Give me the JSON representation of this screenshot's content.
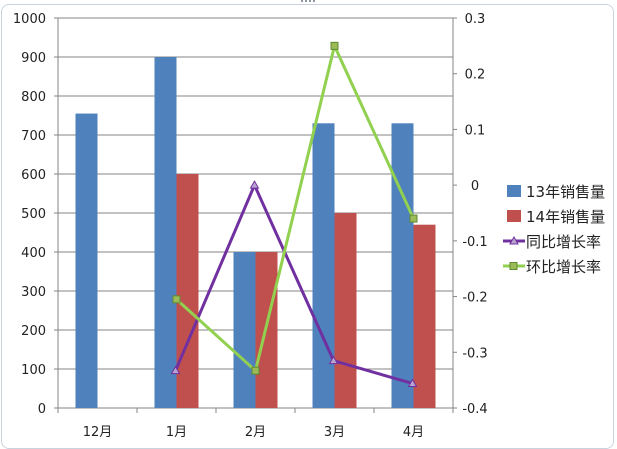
{
  "chart_data": {
    "type": "bar+line",
    "categories": [
      "12月",
      "1月",
      "2月",
      "3月",
      "4月"
    ],
    "series": [
      {
        "name": "13年销售量",
        "kind": "bar",
        "axis": "left",
        "color": "#4f81bd",
        "values": [
          755,
          900,
          400,
          730,
          730
        ]
      },
      {
        "name": "14年销售量",
        "kind": "bar",
        "axis": "left",
        "color": "#c0504d",
        "values": [
          null,
          600,
          400,
          500,
          470
        ]
      },
      {
        "name": "同比增长率",
        "kind": "line",
        "axis": "right",
        "color": "#7030a0",
        "marker": "triangle",
        "values": [
          null,
          -0.333,
          0,
          -0.315,
          -0.356
        ]
      },
      {
        "name": "环比增长率",
        "kind": "line",
        "axis": "right",
        "color": "#92d050",
        "marker": "square",
        "values": [
          null,
          -0.205,
          -0.333,
          0.25,
          -0.06
        ]
      }
    ],
    "yleft": {
      "lim": [
        0,
        1000
      ],
      "ticks": [
        "0",
        "100",
        "200",
        "300",
        "400",
        "500",
        "600",
        "700",
        "800",
        "900",
        "1000"
      ]
    },
    "yright": {
      "lim": [
        -0.4,
        0.3
      ],
      "ticks": [
        "-0.4",
        "-0.3",
        "-0.2",
        "-0.1",
        "0",
        "0.1",
        "0.2",
        "0.3"
      ]
    },
    "grid": true,
    "legend": "right"
  }
}
